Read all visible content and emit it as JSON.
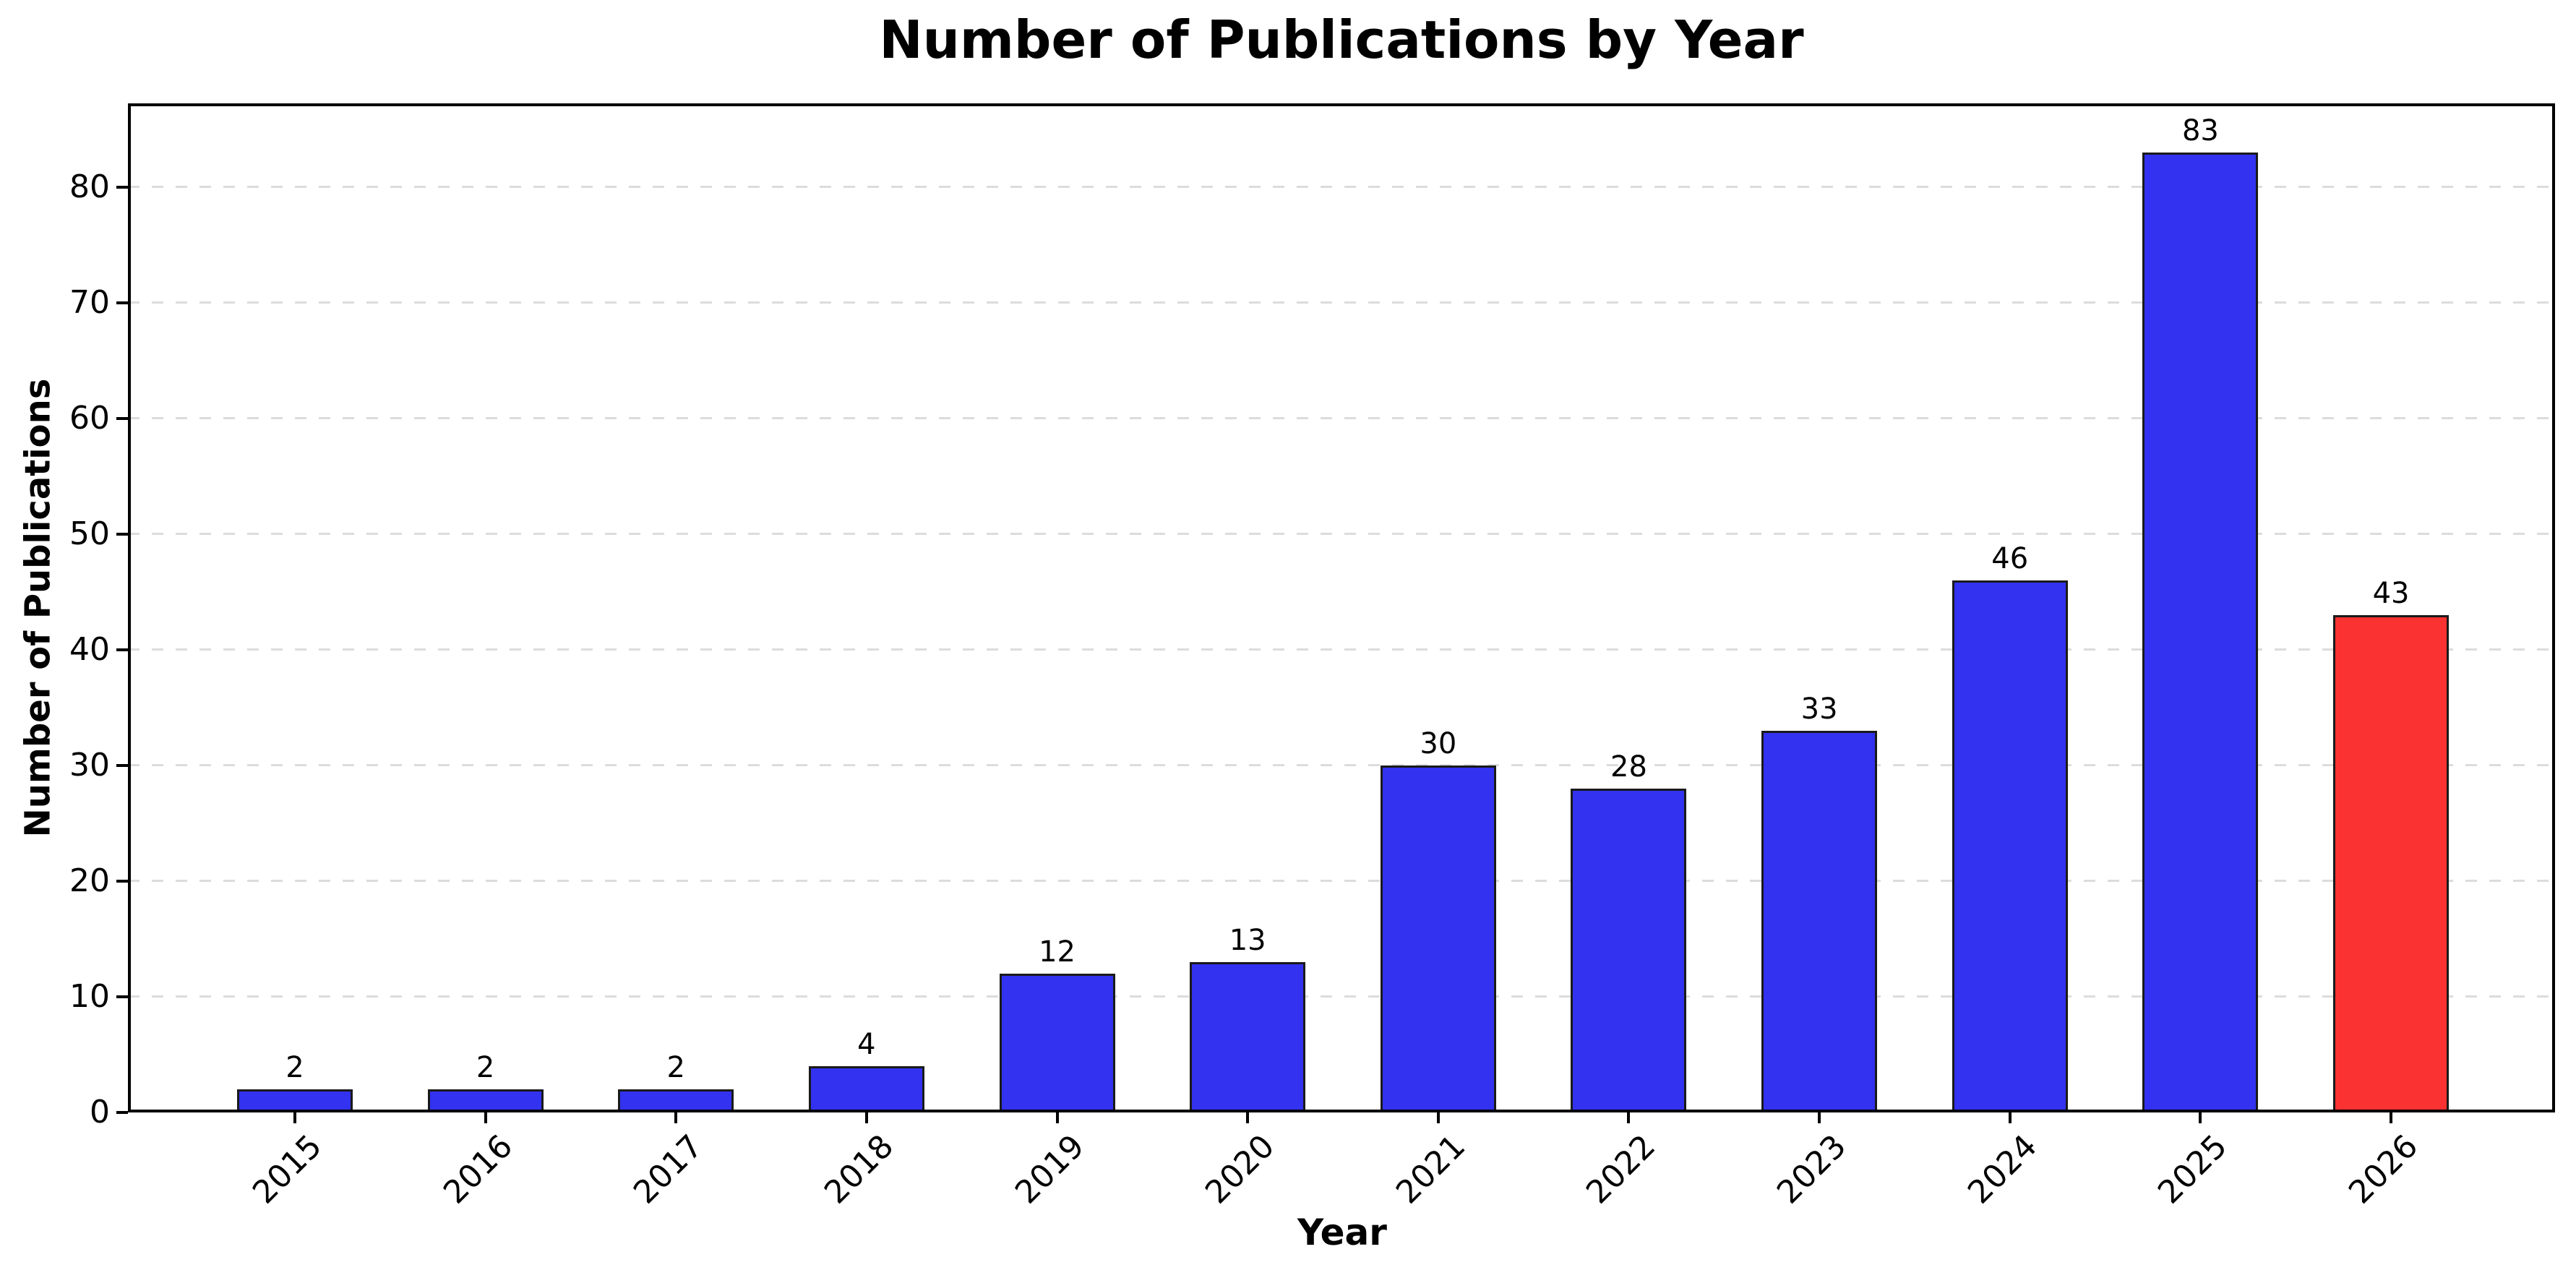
{
  "figure": {
    "title": "Number of Publications by Year",
    "xlabel": "Year",
    "ylabel": "Number of Publications"
  },
  "chart_data": {
    "type": "bar",
    "title": "Number of Publications by Year",
    "xlabel": "Year",
    "ylabel": "Number of Publications",
    "categories": [
      "2015",
      "2016",
      "2017",
      "2018",
      "2019",
      "2020",
      "2021",
      "2022",
      "2023",
      "2024",
      "2025",
      "2026"
    ],
    "values": [
      2,
      2,
      2,
      4,
      12,
      13,
      30,
      28,
      33,
      46,
      83,
      43
    ],
    "bar_value_labels": [
      "2",
      "2",
      "2",
      "4",
      "12",
      "13",
      "30",
      "28",
      "33",
      "46",
      "83",
      "43"
    ],
    "yticks": [
      0,
      10,
      20,
      30,
      40,
      50,
      60,
      70,
      80
    ],
    "ylim": [
      0,
      87.25
    ],
    "xtick_rotation_deg": 45,
    "grid": {
      "axis": "y",
      "line_style": "dashed",
      "color": "#dcdcdc",
      "on": true
    },
    "legend": null,
    "style": {
      "default_bar_color": "#3232F0",
      "highlight_bar_color": "#FA3232",
      "highlight_category": "2026",
      "bar_edge_color": "#1a1a1a",
      "spine_color": "#000000",
      "text_color": "#000000",
      "background_color": "#ffffff"
    }
  }
}
